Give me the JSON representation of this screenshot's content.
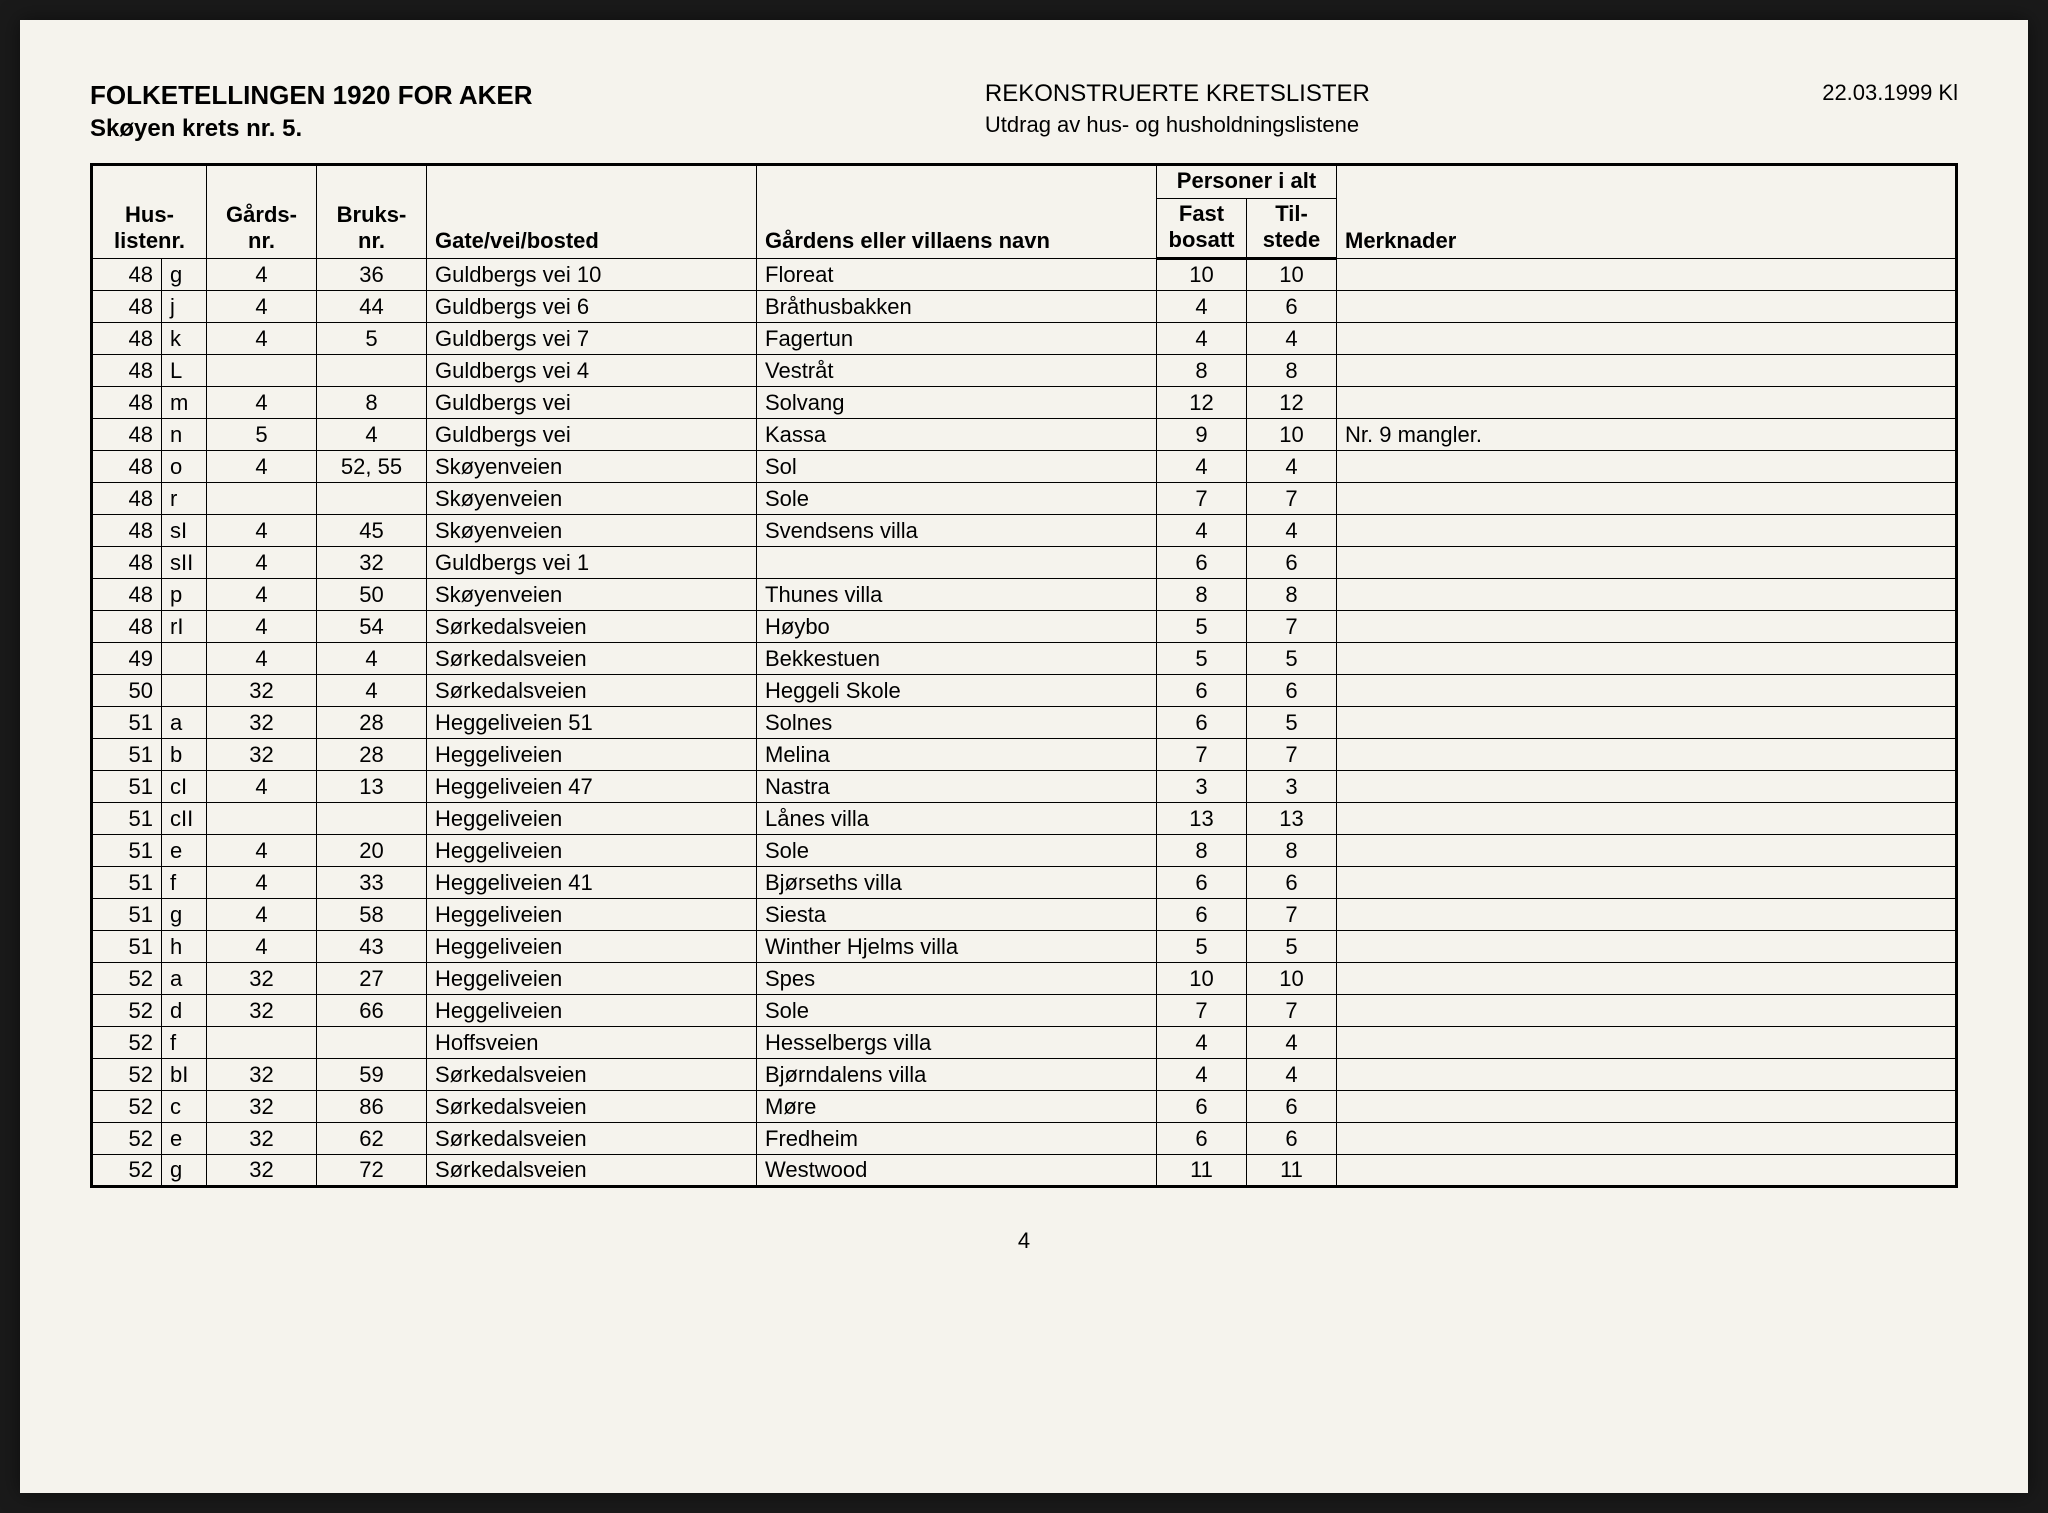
{
  "header": {
    "title": "FOLKETELLINGEN 1920 FOR AKER",
    "subtitle": "Skøyen krets nr. 5.",
    "center_line1": "REKONSTRUERTE KRETSLISTER",
    "center_line2": "Utdrag av hus- og husholdningslistene",
    "date": "22.03.1999 Kl"
  },
  "columns": {
    "hus": "Hus-\nlistenr.",
    "gards": "Gårds-\nnr.",
    "bruks": "Bruks-\nnr.",
    "gate": "Gate/vei/bosted",
    "gardens": "Gårdens eller villaens navn",
    "personer": "Personer i alt",
    "fast": "Fast\nbosatt",
    "til": "Til-\nstede",
    "merk": "Merknader"
  },
  "rows": [
    {
      "hus": "48",
      "sub": "g",
      "gards": "4",
      "bruks": "36",
      "gate": "Guldbergs vei 10",
      "gardens": "Floreat",
      "fast": "10",
      "til": "10",
      "merk": ""
    },
    {
      "hus": "48",
      "sub": "j",
      "gards": "4",
      "bruks": "44",
      "gate": "Guldbergs vei 6",
      "gardens": "Bråthusbakken",
      "fast": "4",
      "til": "6",
      "merk": ""
    },
    {
      "hus": "48",
      "sub": "k",
      "gards": "4",
      "bruks": "5",
      "gate": "Guldbergs vei 7",
      "gardens": "Fagertun",
      "fast": "4",
      "til": "4",
      "merk": ""
    },
    {
      "hus": "48",
      "sub": "L",
      "gards": "",
      "bruks": "",
      "gate": "Guldbergs vei 4",
      "gardens": "Vestråt",
      "fast": "8",
      "til": "8",
      "merk": ""
    },
    {
      "hus": "48",
      "sub": "m",
      "gards": "4",
      "bruks": "8",
      "gate": "Guldbergs vei",
      "gardens": "Solvang",
      "fast": "12",
      "til": "12",
      "merk": ""
    },
    {
      "hus": "48",
      "sub": "n",
      "gards": "5",
      "bruks": "4",
      "gate": "Guldbergs vei",
      "gardens": "Kassa",
      "fast": "9",
      "til": "10",
      "merk": "Nr. 9 mangler."
    },
    {
      "hus": "48",
      "sub": "o",
      "gards": "4",
      "bruks": "52, 55",
      "gate": "Skøyenveien",
      "gardens": "Sol",
      "fast": "4",
      "til": "4",
      "merk": ""
    },
    {
      "hus": "48",
      "sub": "r",
      "gards": "",
      "bruks": "",
      "gate": "Skøyenveien",
      "gardens": "Sole",
      "fast": "7",
      "til": "7",
      "merk": ""
    },
    {
      "hus": "48",
      "sub": "sI",
      "gards": "4",
      "bruks": "45",
      "gate": "Skøyenveien",
      "gardens": "Svendsens villa",
      "fast": "4",
      "til": "4",
      "merk": ""
    },
    {
      "hus": "48",
      "sub": "sII",
      "gards": "4",
      "bruks": "32",
      "gate": "Guldbergs vei 1",
      "gardens": "",
      "fast": "6",
      "til": "6",
      "merk": ""
    },
    {
      "hus": "48",
      "sub": "p",
      "gards": "4",
      "bruks": "50",
      "gate": "Skøyenveien",
      "gardens": "Thunes villa",
      "fast": "8",
      "til": "8",
      "merk": ""
    },
    {
      "hus": "48",
      "sub": "rI",
      "gards": "4",
      "bruks": "54",
      "gate": "Sørkedalsveien",
      "gardens": "Høybo",
      "fast": "5",
      "til": "7",
      "merk": ""
    },
    {
      "hus": "49",
      "sub": "",
      "gards": "4",
      "bruks": "4",
      "gate": "Sørkedalsveien",
      "gardens": "Bekkestuen",
      "fast": "5",
      "til": "5",
      "merk": ""
    },
    {
      "hus": "50",
      "sub": "",
      "gards": "32",
      "bruks": "4",
      "gate": "Sørkedalsveien",
      "gardens": "Heggeli Skole",
      "fast": "6",
      "til": "6",
      "merk": ""
    },
    {
      "hus": "51",
      "sub": "a",
      "gards": "32",
      "bruks": "28",
      "gate": "Heggeliveien 51",
      "gardens": "Solnes",
      "fast": "6",
      "til": "5",
      "merk": ""
    },
    {
      "hus": "51",
      "sub": "b",
      "gards": "32",
      "bruks": "28",
      "gate": "Heggeliveien",
      "gardens": "Melina",
      "fast": "7",
      "til": "7",
      "merk": ""
    },
    {
      "hus": "51",
      "sub": "cI",
      "gards": "4",
      "bruks": "13",
      "gate": "Heggeliveien 47",
      "gardens": "Nastra",
      "fast": "3",
      "til": "3",
      "merk": ""
    },
    {
      "hus": "51",
      "sub": "cII",
      "gards": "",
      "bruks": "",
      "gate": "Heggeliveien",
      "gardens": "Lånes villa",
      "fast": "13",
      "til": "13",
      "merk": ""
    },
    {
      "hus": "51",
      "sub": "e",
      "gards": "4",
      "bruks": "20",
      "gate": "Heggeliveien",
      "gardens": "Sole",
      "fast": "8",
      "til": "8",
      "merk": ""
    },
    {
      "hus": "51",
      "sub": "f",
      "gards": "4",
      "bruks": "33",
      "gate": "Heggeliveien 41",
      "gardens": "Bjørseths villa",
      "fast": "6",
      "til": "6",
      "merk": ""
    },
    {
      "hus": "51",
      "sub": "g",
      "gards": "4",
      "bruks": "58",
      "gate": "Heggeliveien",
      "gardens": "Siesta",
      "fast": "6",
      "til": "7",
      "merk": ""
    },
    {
      "hus": "51",
      "sub": "h",
      "gards": "4",
      "bruks": "43",
      "gate": "Heggeliveien",
      "gardens": "Winther Hjelms villa",
      "fast": "5",
      "til": "5",
      "merk": ""
    },
    {
      "hus": "52",
      "sub": "a",
      "gards": "32",
      "bruks": "27",
      "gate": "Heggeliveien",
      "gardens": "Spes",
      "fast": "10",
      "til": "10",
      "merk": ""
    },
    {
      "hus": "52",
      "sub": "d",
      "gards": "32",
      "bruks": "66",
      "gate": "Heggeliveien",
      "gardens": "Sole",
      "fast": "7",
      "til": "7",
      "merk": ""
    },
    {
      "hus": "52",
      "sub": "f",
      "gards": "",
      "bruks": "",
      "gate": "Hoffsveien",
      "gardens": "Hesselbergs villa",
      "fast": "4",
      "til": "4",
      "merk": ""
    },
    {
      "hus": "52",
      "sub": "bI",
      "gards": "32",
      "bruks": "59",
      "gate": "Sørkedalsveien",
      "gardens": "Bjørndalens villa",
      "fast": "4",
      "til": "4",
      "merk": ""
    },
    {
      "hus": "52",
      "sub": "c",
      "gards": "32",
      "bruks": "86",
      "gate": "Sørkedalsveien",
      "gardens": "Møre",
      "fast": "6",
      "til": "6",
      "merk": ""
    },
    {
      "hus": "52",
      "sub": "e",
      "gards": "32",
      "bruks": "62",
      "gate": "Sørkedalsveien",
      "gardens": "Fredheim",
      "fast": "6",
      "til": "6",
      "merk": ""
    },
    {
      "hus": "52",
      "sub": "g",
      "gards": "32",
      "bruks": "72",
      "gate": "Sørkedalsveien",
      "gardens": "Westwood",
      "fast": "11",
      "til": "11",
      "merk": ""
    }
  ],
  "page_number": "4",
  "styling": {
    "page_bg": "#f5f3ed",
    "border_color": "#000000",
    "font_family": "Arial",
    "header_fontsize": 26,
    "body_fontsize": 22,
    "outer_border_width": 3,
    "inner_border_width": 1
  }
}
